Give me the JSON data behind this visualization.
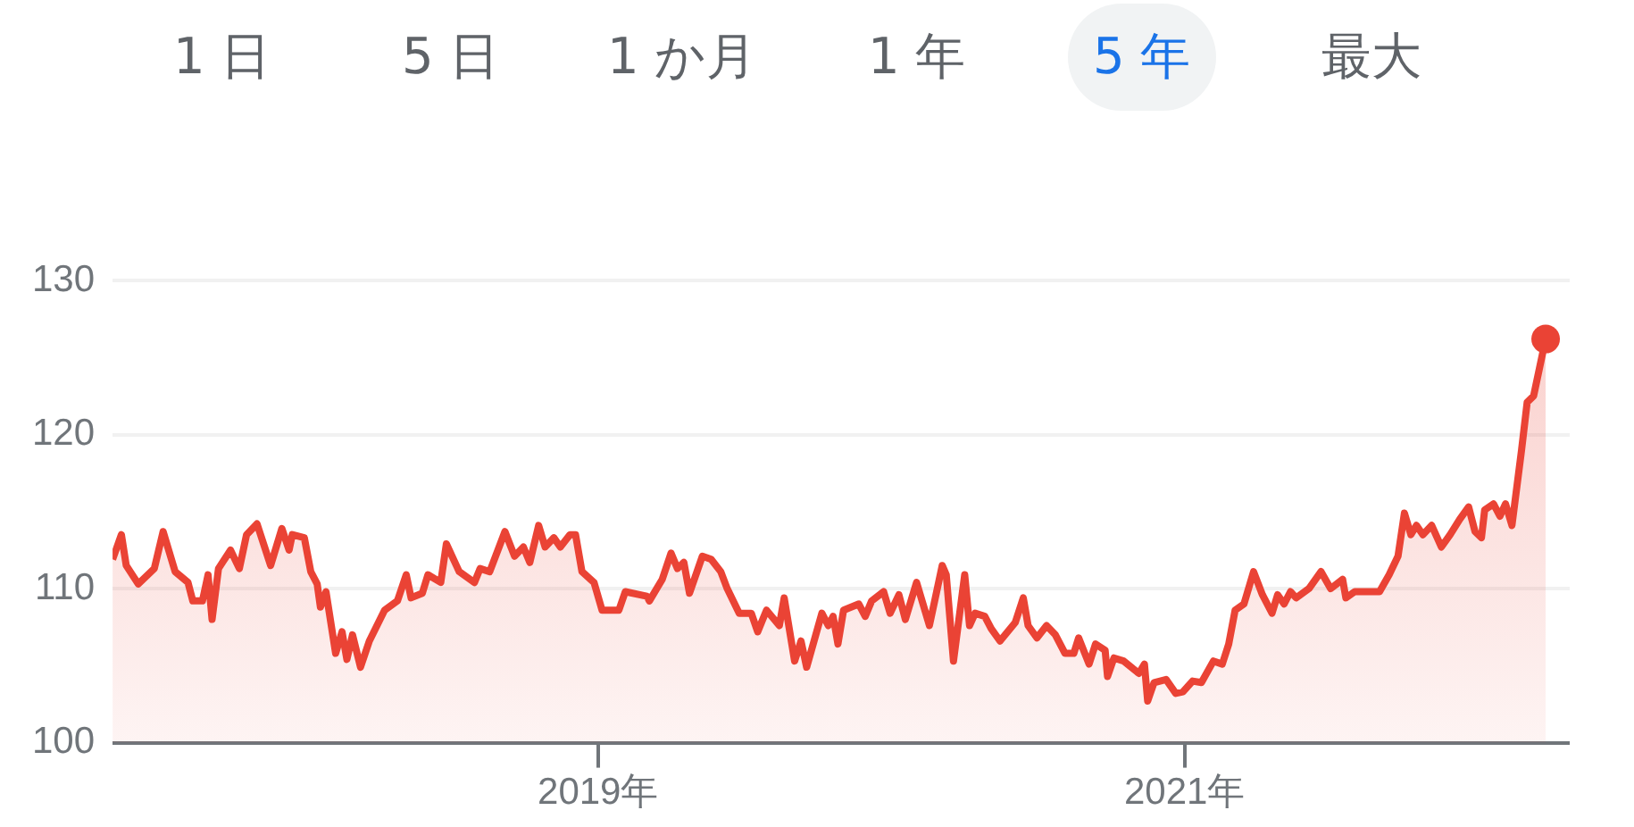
{
  "chart_data": {
    "type": "area",
    "annotations": [
      "1 日",
      "5 日",
      "1 か月",
      "1 年",
      "5 年",
      "最大"
    ],
    "x": [
      "2017-05-06",
      "2017-05-17",
      "2017-05-23",
      "2017-06-07",
      "2017-06-27",
      "2017-07-08",
      "2017-07-23",
      "2017-08-08",
      "2017-08-14",
      "2017-08-26",
      "2017-09-02",
      "2017-09-07",
      "2017-09-15",
      "2017-09-30",
      "2017-10-11",
      "2017-10-20",
      "2017-11-02",
      "2017-11-19",
      "2017-12-03",
      "2017-12-12",
      "2017-12-16",
      "2017-12-31",
      "2018-01-08",
      "2018-01-16",
      "2018-01-20",
      "2018-01-27",
      "2018-02-08",
      "2018-02-16",
      "2018-02-22",
      "2018-03-01",
      "2018-03-11",
      "2018-03-22",
      "2018-04-10",
      "2018-04-26",
      "2018-05-07",
      "2018-05-13",
      "2018-05-27",
      "2018-06-03",
      "2018-06-19",
      "2018-06-26",
      "2018-07-12",
      "2018-07-31",
      "2018-08-07",
      "2018-08-19",
      "2018-09-07",
      "2018-09-19",
      "2018-09-30",
      "2018-10-08",
      "2018-10-19",
      "2018-10-27",
      "2018-11-07",
      "2018-11-15",
      "2018-11-27",
      "2018-12-04",
      "2018-12-12",
      "2018-12-27",
      "2019-01-06",
      "2019-01-27",
      "2019-02-04",
      "2019-03-03",
      "2019-03-06",
      "2019-03-22",
      "2019-04-02",
      "2019-04-10",
      "2019-04-18",
      "2019-04-25",
      "2019-05-11",
      "2019-05-22",
      "2019-06-03",
      "2019-06-11",
      "2019-06-26",
      "2019-07-11",
      "2019-07-19",
      "2019-07-30",
      "2019-08-15",
      "2019-08-21",
      "2019-09-03",
      "2019-09-11",
      "2019-09-18",
      "2019-10-07",
      "2019-10-15",
      "2019-10-21",
      "2019-10-27",
      "2019-11-03",
      "2019-11-22",
      "2019-11-30",
      "2019-12-08",
      "2019-12-23",
      "2019-12-31",
      "2020-01-11",
      "2020-01-19",
      "2020-02-02",
      "2020-02-18",
      "2020-03-05",
      "2020-03-10",
      "2020-03-19",
      "2020-04-02",
      "2020-04-08",
      "2020-04-15",
      "2020-04-27",
      "2020-05-05",
      "2020-05-16",
      "2020-06-04",
      "2020-06-14",
      "2020-06-20",
      "2020-07-01",
      "2020-07-13",
      "2020-07-24",
      "2020-08-05",
      "2020-08-16",
      "2020-08-22",
      "2020-09-04",
      "2020-09-12",
      "2020-09-24",
      "2020-09-27",
      "2020-10-05",
      "2020-10-17",
      "2020-11-05",
      "2020-11-12",
      "2020-11-16",
      "2020-11-24",
      "2020-12-09",
      "2020-12-21",
      "2020-12-30",
      "2021-01-11",
      "2021-01-22",
      "2021-02-06",
      "2021-02-17",
      "2021-02-25",
      "2021-03-05",
      "2021-03-16",
      "2021-03-28",
      "2021-04-08",
      "2021-04-20",
      "2021-04-27",
      "2021-05-05",
      "2021-05-13",
      "2021-05-20",
      "2021-06-05",
      "2021-06-20",
      "2021-07-02",
      "2021-07-17",
      "2021-07-21",
      "2021-08-01",
      "2021-08-13",
      "2021-09-01",
      "2021-09-13",
      "2021-09-24",
      "2021-10-02",
      "2021-10-10",
      "2021-10-17",
      "2021-10-25",
      "2021-11-05",
      "2021-11-17",
      "2021-11-28",
      "2021-12-10",
      "2021-12-21",
      "2021-12-29",
      "2022-01-06",
      "2022-01-10",
      "2022-01-21",
      "2022-01-29",
      "2022-02-05",
      "2022-02-13",
      "2022-02-25",
      "2022-03-04",
      "2022-03-12",
      "2022-03-27"
    ],
    "series": [
      {
        "color": "#ea4335",
        "values": [
          111.9,
          113.5,
          111.5,
          110.3,
          111.3,
          113.7,
          111.1,
          110.4,
          109.2,
          109.2,
          110.9,
          108.0,
          111.3,
          112.5,
          111.3,
          113.5,
          114.2,
          111.5,
          113.9,
          112.5,
          113.5,
          113.3,
          111.1,
          110.3,
          108.8,
          109.8,
          105.8,
          107.2,
          105.4,
          107.0,
          104.9,
          106.6,
          108.6,
          109.2,
          110.9,
          109.4,
          109.7,
          110.9,
          110.4,
          112.9,
          111.1,
          110.4,
          111.3,
          111.1,
          113.7,
          112.1,
          112.7,
          111.7,
          114.1,
          112.7,
          113.3,
          112.7,
          113.5,
          113.5,
          111.1,
          110.4,
          108.6,
          108.6,
          109.8,
          109.5,
          109.2,
          110.6,
          112.3,
          111.3,
          111.7,
          109.7,
          112.1,
          111.9,
          111.1,
          110.0,
          108.4,
          108.4,
          107.2,
          108.6,
          107.6,
          109.4,
          105.3,
          106.6,
          104.9,
          108.4,
          107.6,
          108.2,
          106.4,
          108.6,
          109.0,
          108.2,
          109.2,
          109.8,
          108.4,
          109.6,
          108.0,
          110.4,
          107.6,
          111.5,
          110.9,
          105.3,
          110.9,
          107.6,
          108.4,
          108.2,
          107.4,
          106.6,
          107.8,
          109.4,
          107.6,
          106.8,
          107.6,
          107.0,
          105.8,
          105.8,
          106.8,
          105.1,
          106.4,
          106.0,
          104.3,
          105.5,
          105.3,
          104.5,
          105.1,
          102.7,
          103.9,
          104.1,
          103.2,
          103.3,
          104.0,
          103.9,
          105.3,
          105.1,
          106.4,
          108.6,
          109.0,
          111.1,
          109.6,
          108.4,
          109.6,
          109.0,
          109.8,
          109.4,
          110.0,
          111.1,
          110.0,
          110.6,
          109.4,
          109.8,
          109.8,
          109.8,
          110.9,
          112.1,
          114.9,
          113.5,
          114.1,
          113.5,
          114.1,
          112.7,
          113.5,
          114.5,
          115.3,
          113.7,
          113.3,
          115.1,
          115.5,
          114.7,
          115.5,
          114.1,
          119.0,
          122.1,
          122.5,
          126.2
        ]
      }
    ],
    "xlim": [
      "2017-05-06",
      "2022-04-26"
    ],
    "xticks": [
      {
        "value": "2019-01-01",
        "label": "2019年"
      },
      {
        "value": "2021-01-01",
        "label": "2021年"
      }
    ],
    "ylim": [
      100,
      130
    ],
    "yticks": [
      100,
      110,
      120,
      130
    ],
    "grid": "y"
  }
}
